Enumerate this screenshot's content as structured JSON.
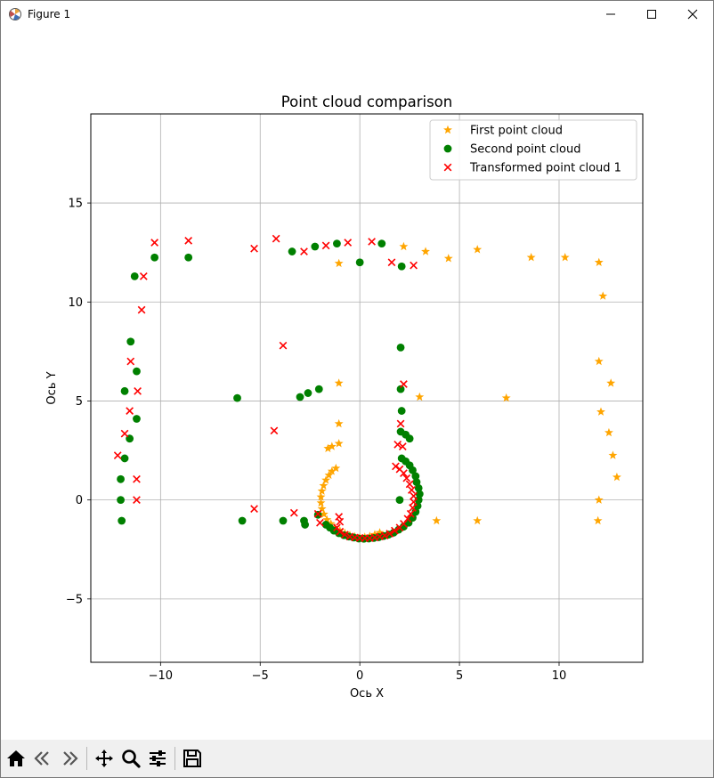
{
  "window": {
    "title": "Figure 1",
    "icon": "matplotlib-icon",
    "controls": [
      "minimize-icon",
      "maximize-icon",
      "close-icon"
    ]
  },
  "toolbar": {
    "buttons": [
      "home-icon",
      "back-arrow-icon",
      "forward-arrow-icon",
      "pan-icon",
      "zoom-icon",
      "configure-subplots-icon",
      "save-icon"
    ]
  },
  "chart_data": {
    "type": "scatter",
    "title": "Point cloud comparison",
    "xlabel": "Ось X",
    "ylabel": "Ось Y",
    "xlim": [
      -13.5,
      14.2
    ],
    "ylim": [
      -8.2,
      19.5
    ],
    "xticks": [
      -10,
      -5,
      0,
      5,
      10
    ],
    "yticks": [
      -5,
      0,
      5,
      10,
      15
    ],
    "grid": true,
    "legend_position": "top-right",
    "series": [
      {
        "name": "First point cloud",
        "marker": "star",
        "color": "#ffa500",
        "points": [
          [
            -1.05,
            11.95
          ],
          [
            2.2,
            12.8
          ],
          [
            3.3,
            12.55
          ],
          [
            4.45,
            12.2
          ],
          [
            5.9,
            12.65
          ],
          [
            8.6,
            12.25
          ],
          [
            10.3,
            12.25
          ],
          [
            12.0,
            12.0
          ],
          [
            12.2,
            10.3
          ],
          [
            12.0,
            7.0
          ],
          [
            12.1,
            4.45
          ],
          [
            12.6,
            5.9
          ],
          [
            12.5,
            3.4
          ],
          [
            12.7,
            2.25
          ],
          [
            12.9,
            1.15
          ],
          [
            12.0,
            0.0
          ],
          [
            11.95,
            -1.05
          ],
          [
            -1.05,
            5.9
          ],
          [
            -1.05,
            3.85
          ],
          [
            -1.05,
            2.85
          ],
          [
            -1.4,
            2.7
          ],
          [
            -1.6,
            2.6
          ],
          [
            3.0,
            5.2
          ],
          [
            7.35,
            5.15
          ],
          [
            3.85,
            -1.05
          ],
          [
            5.9,
            -1.05
          ],
          [
            -1.2,
            1.6
          ],
          [
            -1.4,
            1.45
          ],
          [
            -1.55,
            1.25
          ],
          [
            -1.7,
            1.0
          ],
          [
            -1.82,
            0.72
          ],
          [
            -1.9,
            0.45
          ],
          [
            -1.95,
            0.15
          ],
          [
            -1.95,
            -0.15
          ],
          [
            -1.9,
            -0.45
          ],
          [
            -1.8,
            -0.72
          ],
          [
            -1.65,
            -1.0
          ],
          [
            -1.45,
            -1.2
          ],
          [
            -1.25,
            -1.4
          ],
          [
            -1.0,
            -1.55
          ],
          [
            -0.75,
            -1.68
          ],
          [
            -0.5,
            -1.78
          ],
          [
            -0.25,
            -1.85
          ],
          [
            0.0,
            -1.9
          ],
          [
            0.25,
            -1.88
          ],
          [
            0.5,
            -1.83
          ],
          [
            0.75,
            -1.75
          ],
          [
            1.0,
            -1.65
          ]
        ]
      },
      {
        "name": "Second point cloud",
        "marker": "circle",
        "color": "#008000",
        "points": [
          [
            -11.3,
            11.3
          ],
          [
            -10.3,
            12.25
          ],
          [
            -8.6,
            12.25
          ],
          [
            -3.4,
            12.55
          ],
          [
            -2.25,
            12.8
          ],
          [
            -1.15,
            12.95
          ],
          [
            0.0,
            12.0
          ],
          [
            1.1,
            12.95
          ],
          [
            2.1,
            11.8
          ],
          [
            -11.5,
            8.0
          ],
          [
            -11.8,
            5.5
          ],
          [
            -11.2,
            6.5
          ],
          [
            -11.2,
            4.1
          ],
          [
            -11.55,
            3.1
          ],
          [
            -11.8,
            2.1
          ],
          [
            -12.0,
            1.05
          ],
          [
            -12.0,
            0.0
          ],
          [
            -11.95,
            -1.05
          ],
          [
            -6.15,
            5.15
          ],
          [
            -3.0,
            5.2
          ],
          [
            -2.6,
            5.4
          ],
          [
            -2.05,
            5.6
          ],
          [
            2.05,
            7.7
          ],
          [
            2.05,
            5.6
          ],
          [
            2.1,
            4.5
          ],
          [
            2.05,
            3.45
          ],
          [
            2.3,
            3.3
          ],
          [
            2.5,
            3.1
          ],
          [
            -5.9,
            -1.05
          ],
          [
            -3.85,
            -1.05
          ],
          [
            -2.8,
            -1.05
          ],
          [
            -2.75,
            -1.25
          ],
          [
            -2.1,
            -0.75
          ],
          [
            2.0,
            0.0
          ],
          [
            2.1,
            2.1
          ],
          [
            2.3,
            1.95
          ],
          [
            2.5,
            1.75
          ],
          [
            2.65,
            1.5
          ],
          [
            2.8,
            1.2
          ],
          [
            2.85,
            0.9
          ],
          [
            2.95,
            0.6
          ],
          [
            3.0,
            0.3
          ],
          [
            2.95,
            0.0
          ],
          [
            2.9,
            -0.3
          ],
          [
            2.8,
            -0.6
          ],
          [
            2.65,
            -0.9
          ],
          [
            2.45,
            -1.15
          ],
          [
            2.2,
            -1.35
          ],
          [
            1.95,
            -1.5
          ],
          [
            1.7,
            -1.65
          ],
          [
            1.45,
            -1.75
          ],
          [
            1.2,
            -1.82
          ],
          [
            0.95,
            -1.88
          ],
          [
            0.7,
            -1.92
          ],
          [
            0.45,
            -1.95
          ],
          [
            0.2,
            -1.96
          ],
          [
            -0.05,
            -1.95
          ],
          [
            -0.3,
            -1.9
          ],
          [
            -0.55,
            -1.85
          ],
          [
            -0.8,
            -1.78
          ],
          [
            -1.05,
            -1.68
          ],
          [
            -1.3,
            -1.55
          ],
          [
            -1.5,
            -1.4
          ],
          [
            -1.7,
            -1.25
          ]
        ]
      },
      {
        "name": "Transformed point cloud 1",
        "marker": "x",
        "color": "#ff0000",
        "points": [
          [
            -10.3,
            13.0
          ],
          [
            -8.6,
            13.1
          ],
          [
            -10.85,
            11.3
          ],
          [
            -10.95,
            9.6
          ],
          [
            -5.3,
            12.7
          ],
          [
            -4.2,
            13.2
          ],
          [
            -2.8,
            12.55
          ],
          [
            -1.7,
            12.85
          ],
          [
            -0.6,
            13.0
          ],
          [
            0.6,
            13.05
          ],
          [
            1.6,
            12.0
          ],
          [
            2.7,
            11.85
          ],
          [
            -11.5,
            7.0
          ],
          [
            -11.15,
            5.5
          ],
          [
            -11.55,
            4.5
          ],
          [
            -11.8,
            3.35
          ],
          [
            -12.15,
            2.25
          ],
          [
            -11.2,
            1.05
          ],
          [
            -11.2,
            0.0
          ],
          [
            -3.85,
            7.8
          ],
          [
            -4.3,
            3.5
          ],
          [
            -5.3,
            -0.45
          ],
          [
            -3.3,
            -0.65
          ],
          [
            -2.1,
            -0.7
          ],
          [
            -2.0,
            -1.15
          ],
          [
            2.2,
            5.85
          ],
          [
            2.05,
            3.85
          ],
          [
            1.9,
            2.8
          ],
          [
            2.15,
            2.7
          ],
          [
            1.8,
            1.7
          ],
          [
            2.0,
            1.55
          ],
          [
            2.2,
            1.35
          ],
          [
            2.35,
            1.1
          ],
          [
            2.5,
            0.8
          ],
          [
            2.6,
            0.5
          ],
          [
            2.7,
            0.2
          ],
          [
            2.7,
            -0.1
          ],
          [
            2.65,
            -0.4
          ],
          [
            2.55,
            -0.7
          ],
          [
            2.4,
            -0.95
          ],
          [
            2.2,
            -1.2
          ],
          [
            2.0,
            -1.4
          ],
          [
            1.75,
            -1.55
          ],
          [
            1.5,
            -1.7
          ],
          [
            1.25,
            -1.8
          ],
          [
            1.0,
            -1.85
          ],
          [
            0.75,
            -1.9
          ],
          [
            0.5,
            -1.93
          ],
          [
            0.25,
            -1.93
          ],
          [
            0.0,
            -1.92
          ],
          [
            -0.25,
            -1.9
          ],
          [
            -0.5,
            -1.85
          ],
          [
            -0.75,
            -1.75
          ],
          [
            -1.0,
            -1.6
          ],
          [
            -1.15,
            -1.4
          ],
          [
            -1.0,
            -1.1
          ],
          [
            -1.05,
            -0.85
          ]
        ]
      }
    ]
  }
}
